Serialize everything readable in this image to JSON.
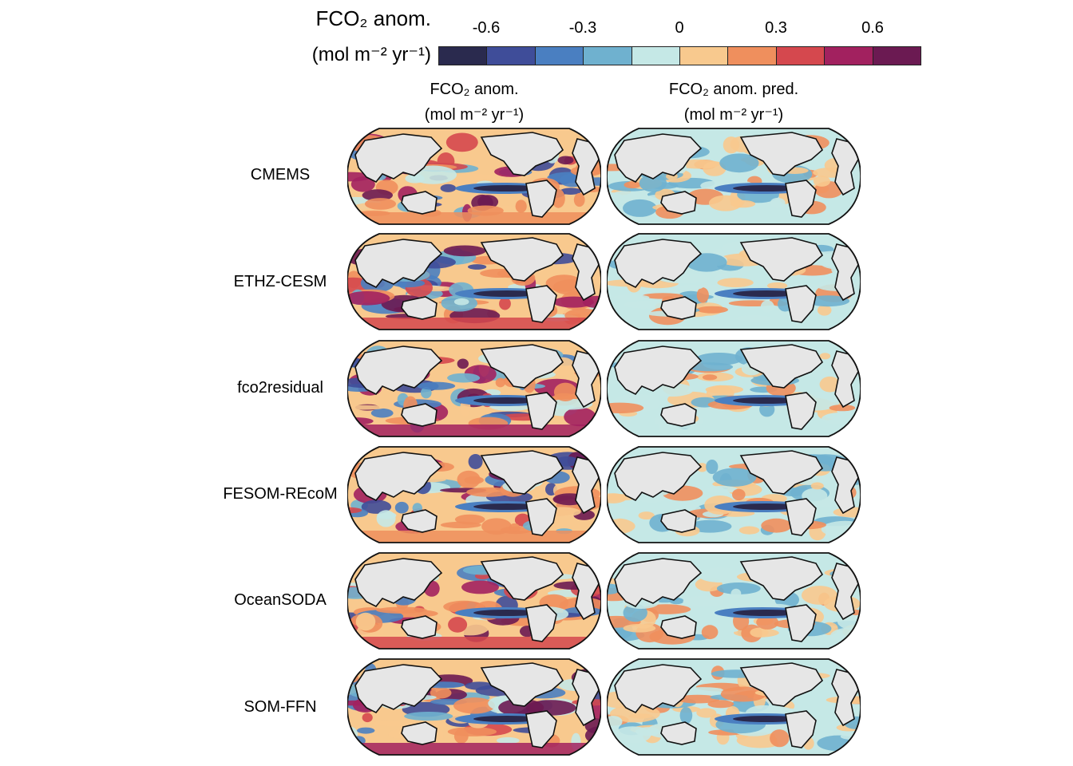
{
  "colorbar": {
    "title_line1": "FCO₂ anom.",
    "title_line2": "(mol m⁻² yr⁻¹)",
    "ticks": [
      "-0.6",
      "-0.3",
      "0",
      "0.3",
      "0.6"
    ],
    "colors": [
      "#2a2a4e",
      "#3f4d99",
      "#4a7fc1",
      "#6fb1cf",
      "#c5e8e6",
      "#f8c98e",
      "#ef8f5d",
      "#d5484e",
      "#a2215f",
      "#6b1a52"
    ]
  },
  "columns": [
    {
      "line1": "FCO₂ anom.",
      "line2": "(mol m⁻² yr⁻¹)"
    },
    {
      "line1": "FCO₂ anom. pred.",
      "line2": "(mol m⁻² yr⁻¹)"
    }
  ],
  "rows": [
    "CMEMS",
    "ETHZ-CESM",
    "fco2residual",
    "FESOM-REcoM",
    "OceanSODA",
    "SOM-FFN"
  ]
}
